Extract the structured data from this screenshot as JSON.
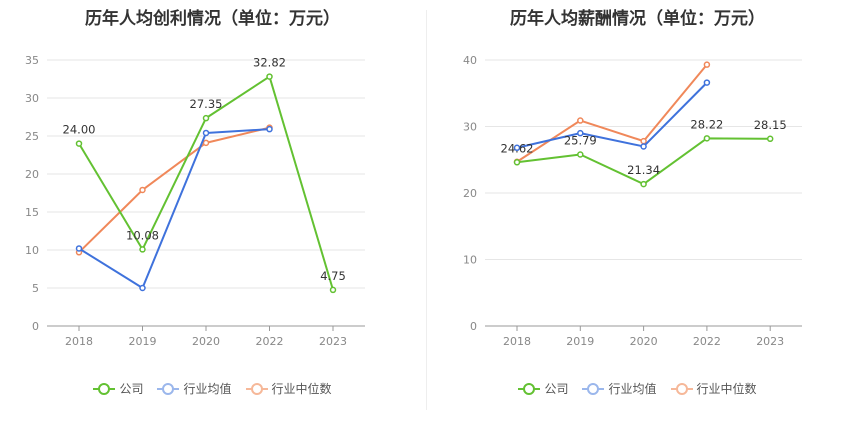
{
  "chart_data": [
    {
      "type": "line",
      "title": "历年人均创利情况（单位：万元）",
      "categories": [
        "2018",
        "2019",
        "2020",
        "2022",
        "2023"
      ],
      "ylim": [
        0,
        35
      ],
      "yticks": [
        0,
        5,
        10,
        15,
        20,
        25,
        30,
        35
      ],
      "grid": true,
      "legend_position": "bottom",
      "series": [
        {
          "name": "公司",
          "color": "#63c132",
          "values": [
            24.0,
            10.08,
            27.35,
            32.82,
            4.75
          ],
          "labels": [
            "24.00",
            "10.08",
            "27.35",
            "32.82",
            "4.75"
          ]
        },
        {
          "name": "行业均值",
          "color": "#3f72dc",
          "values": [
            10.2,
            5.0,
            25.4,
            25.9,
            null
          ]
        },
        {
          "name": "行业中位数",
          "color": "#f0885a",
          "values": [
            9.7,
            17.9,
            24.1,
            26.1,
            null
          ]
        }
      ]
    },
    {
      "type": "line",
      "title": "历年人均薪酬情况（单位：万元）",
      "categories": [
        "2018",
        "2019",
        "2020",
        "2022",
        "2023"
      ],
      "ylim": [
        0,
        40
      ],
      "yticks": [
        0,
        10,
        20,
        30,
        40
      ],
      "grid": true,
      "legend_position": "bottom",
      "series": [
        {
          "name": "公司",
          "color": "#63c132",
          "values": [
            24.62,
            25.79,
            21.34,
            28.22,
            28.15
          ],
          "labels": [
            "24.62",
            "25.79",
            "21.34",
            "28.22",
            "28.15"
          ]
        },
        {
          "name": "行业均值",
          "color": "#3f72dc",
          "values": [
            26.8,
            29.0,
            27.0,
            36.6,
            null
          ]
        },
        {
          "name": "行业中位数",
          "color": "#f0885a",
          "values": [
            24.7,
            30.9,
            27.8,
            39.3,
            null
          ]
        }
      ]
    }
  ]
}
